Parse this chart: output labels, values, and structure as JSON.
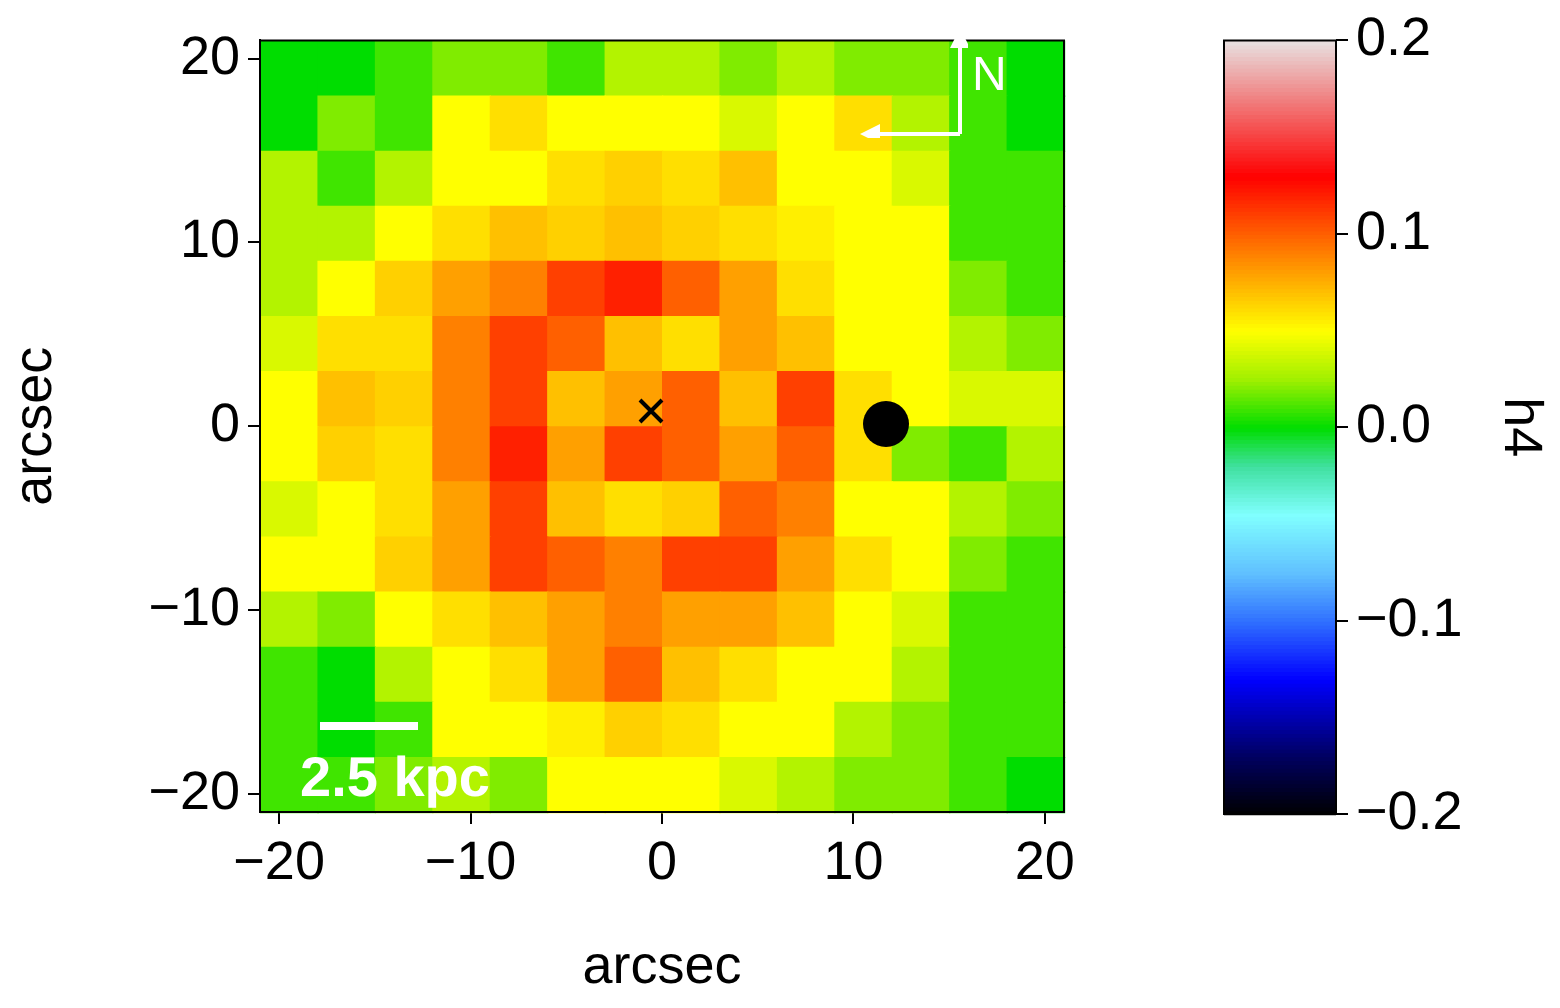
{
  "chart_data": {
    "type": "heatmap",
    "xlabel": "arcsec",
    "ylabel": "arcsec",
    "clabel": "h4",
    "x": [
      -19.5,
      -16.5,
      -13.5,
      -10.5,
      -7.5,
      -4.5,
      -1.5,
      1.5,
      4.5,
      7.5,
      10.5,
      13.5,
      16.5,
      19.5
    ],
    "y": [
      19.5,
      16.5,
      13.5,
      10.5,
      7.5,
      4.5,
      1.5,
      -1.5,
      -4.5,
      -7.5,
      -10.5,
      -13.5,
      -16.5,
      -19.5
    ],
    "xlim": [
      -21,
      21
    ],
    "ylim": [
      -21,
      21
    ],
    "xticks": [
      {
        "value": -20,
        "label": "−20"
      },
      {
        "value": -10,
        "label": "−10"
      },
      0,
      10,
      20
    ],
    "yticks": [
      {
        "value": -20,
        "label": "−20"
      },
      {
        "value": -10,
        "label": "−10"
      },
      0,
      10,
      20
    ],
    "clim": [
      -0.2,
      0.2
    ],
    "cticks": [
      {
        "value": -0.2,
        "label": "−0.2"
      },
      {
        "value": -0.1,
        "label": "−0.1"
      },
      {
        "value": 0,
        "label": "0.0"
      },
      0.1,
      0.2
    ],
    "cells": [
      [
        0.0,
        0.0,
        0.01,
        0.02,
        0.02,
        0.01,
        0.03,
        0.03,
        0.02,
        0.03,
        0.02,
        0.02,
        0.01,
        0.0
      ],
      [
        0.0,
        0.02,
        0.01,
        0.05,
        0.06,
        0.05,
        0.05,
        0.05,
        0.04,
        0.05,
        0.06,
        0.03,
        0.01,
        0.0
      ],
      [
        0.03,
        0.01,
        0.03,
        0.05,
        0.05,
        0.06,
        0.065,
        0.06,
        0.07,
        0.05,
        0.05,
        0.04,
        0.01,
        0.01
      ],
      [
        0.03,
        0.03,
        0.05,
        0.06,
        0.07,
        0.065,
        0.07,
        0.065,
        0.06,
        0.055,
        0.05,
        0.05,
        0.01,
        0.01
      ],
      [
        0.03,
        0.05,
        0.065,
        0.08,
        0.09,
        0.11,
        0.12,
        0.1,
        0.08,
        0.06,
        0.05,
        0.05,
        0.02,
        0.01
      ],
      [
        0.04,
        0.06,
        0.06,
        0.09,
        0.11,
        0.1,
        0.07,
        0.06,
        0.08,
        0.07,
        0.05,
        0.05,
        0.03,
        0.02
      ],
      [
        0.05,
        0.07,
        0.065,
        0.09,
        0.11,
        0.07,
        0.08,
        0.1,
        0.07,
        0.11,
        0.06,
        0.05,
        0.04,
        0.04
      ],
      [
        0.05,
        0.065,
        0.06,
        0.09,
        0.12,
        0.08,
        0.11,
        0.1,
        0.08,
        0.1,
        0.06,
        0.02,
        0.01,
        0.03
      ],
      [
        0.04,
        0.05,
        0.06,
        0.08,
        0.11,
        0.07,
        0.06,
        0.065,
        0.1,
        0.09,
        0.05,
        0.05,
        0.03,
        0.02
      ],
      [
        0.05,
        0.05,
        0.065,
        0.08,
        0.11,
        0.1,
        0.09,
        0.11,
        0.11,
        0.08,
        0.06,
        0.05,
        0.02,
        0.01
      ],
      [
        0.03,
        0.02,
        0.05,
        0.06,
        0.07,
        0.08,
        0.09,
        0.08,
        0.08,
        0.07,
        0.05,
        0.04,
        0.01,
        0.01
      ],
      [
        0.01,
        0.0,
        0.03,
        0.05,
        0.06,
        0.08,
        0.1,
        0.07,
        0.06,
        0.05,
        0.05,
        0.03,
        0.01,
        0.01
      ],
      [
        0.01,
        0.0,
        0.01,
        0.05,
        0.05,
        0.055,
        0.065,
        0.06,
        0.05,
        0.05,
        0.03,
        0.02,
        0.01,
        0.01
      ],
      [
        0.01,
        0.01,
        0.02,
        0.03,
        0.02,
        0.05,
        0.05,
        0.05,
        0.04,
        0.03,
        0.02,
        0.02,
        0.01,
        0.0
      ]
    ],
    "annotations": [
      "2.5 kpc",
      "N"
    ]
  }
}
